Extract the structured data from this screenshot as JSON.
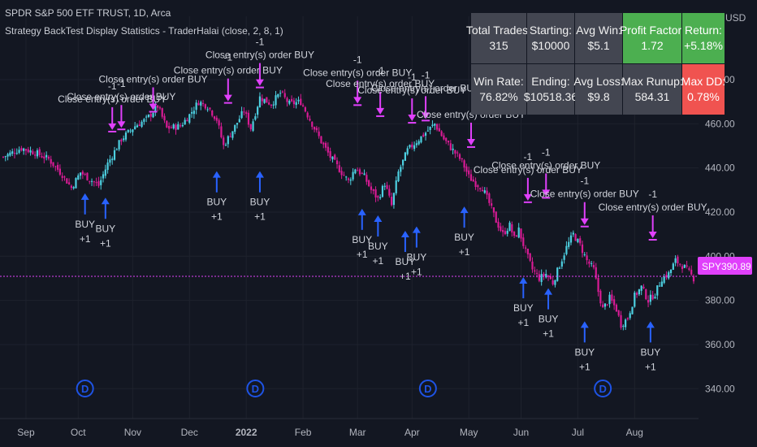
{
  "header": {
    "symbol_line": "SPDR S&P 500 ETF TRUST, 1D, Arca",
    "strategy_line": "Strategy BackTest Display Statistics - TraderHalai (close, 2, 8, 1)"
  },
  "stats_table": [
    {
      "label": "Total Trades:",
      "value": "315",
      "tone": "neutral"
    },
    {
      "label": "Starting:",
      "value": "$10000",
      "tone": "neutral"
    },
    {
      "label": "Avg Win:",
      "value": "$5.1",
      "tone": "neutral"
    },
    {
      "label": "Profit Factor:",
      "value": "1.72",
      "tone": "positive"
    },
    {
      "label": "Return:",
      "value": "+5.18%",
      "tone": "positive"
    },
    {
      "label": "Win Rate:",
      "value": "76.82%",
      "tone": "neutral"
    },
    {
      "label": "Ending:",
      "value": "$10518.36",
      "tone": "neutral"
    },
    {
      "label": "Avg Loss:",
      "value": "$9.8",
      "tone": "neutral"
    },
    {
      "label": "Max Runup:",
      "value": "584.31",
      "tone": "neutral"
    },
    {
      "label": "Max DD:",
      "value": "0.78%",
      "tone": "negative"
    }
  ],
  "colors": {
    "background": "#131722",
    "candle_up": "#4dd0e1",
    "candle_down": "#d81b95",
    "buy_arrow": "#2962ff",
    "exit_arrow": "#e040fb",
    "positive": "#4caf50",
    "negative": "#f05350",
    "price_tag": "#e040fb",
    "dividend_marker": "#1e53e5"
  },
  "chart_data": {
    "type": "candlestick",
    "symbol": "SPY",
    "currency": "USD",
    "last_price": 390.89,
    "last_price_label": "390.89",
    "x_ticks": [
      "Sep",
      "Oct",
      "Nov",
      "Dec",
      "2022",
      "Feb",
      "Mar",
      "Apr",
      "May",
      "Jun",
      "Jul",
      "Aug"
    ],
    "y_ticks": [
      "480.00",
      "460.00",
      "440.00",
      "420.00",
      "400.00",
      "380.00",
      "360.00",
      "340.00"
    ],
    "ylim": [
      332,
      494
    ],
    "y_axis_unit": "USD",
    "close_path": [
      [
        0,
        445
      ],
      [
        8,
        449
      ],
      [
        14,
        447
      ],
      [
        20,
        444
      ],
      [
        26,
        437
      ],
      [
        30,
        431
      ],
      [
        34,
        438
      ],
      [
        38,
        435
      ],
      [
        42,
        432
      ],
      [
        46,
        442
      ],
      [
        52,
        453
      ],
      [
        58,
        459
      ],
      [
        63,
        462
      ],
      [
        68,
        468
      ],
      [
        72,
        458
      ],
      [
        78,
        459
      ],
      [
        82,
        464
      ],
      [
        86,
        470
      ],
      [
        90,
        468
      ],
      [
        94,
        462
      ],
      [
        97,
        450
      ],
      [
        101,
        457
      ],
      [
        106,
        466
      ],
      [
        109,
        458
      ],
      [
        113,
        472
      ],
      [
        118,
        469
      ],
      [
        122,
        474
      ],
      [
        126,
        469
      ],
      [
        131,
        470
      ],
      [
        136,
        460
      ],
      [
        140,
        452
      ],
      [
        144,
        445
      ],
      [
        149,
        438
      ],
      [
        152,
        434
      ],
      [
        155,
        440
      ],
      [
        159,
        436
      ],
      [
        162,
        430
      ],
      [
        165,
        426
      ],
      [
        168,
        433
      ],
      [
        171,
        423
      ],
      [
        174,
        438
      ],
      [
        178,
        448
      ],
      [
        182,
        452
      ],
      [
        186,
        456
      ],
      [
        190,
        460
      ],
      [
        194,
        453
      ],
      [
        198,
        448
      ],
      [
        202,
        443
      ],
      [
        205,
        436
      ],
      [
        208,
        433
      ],
      [
        211,
        431
      ],
      [
        214,
        424
      ],
      [
        217,
        416
      ],
      [
        220,
        410
      ],
      [
        223,
        414
      ],
      [
        225,
        408
      ],
      [
        227,
        412
      ],
      [
        230,
        402
      ],
      [
        233,
        394
      ],
      [
        236,
        390
      ],
      [
        239,
        392
      ],
      [
        242,
        388
      ],
      [
        245,
        396
      ],
      [
        248,
        404
      ],
      [
        251,
        410
      ],
      [
        254,
        405
      ],
      [
        257,
        398
      ],
      [
        260,
        394
      ],
      [
        262,
        384
      ],
      [
        264,
        376
      ],
      [
        267,
        381
      ],
      [
        270,
        376
      ],
      [
        272,
        369
      ],
      [
        275,
        372
      ],
      [
        278,
        382
      ],
      [
        281,
        386
      ],
      [
        284,
        380
      ],
      [
        287,
        383
      ],
      [
        290,
        390
      ],
      [
        293,
        392
      ],
      [
        296,
        398
      ],
      [
        300,
        395
      ],
      [
        304,
        390
      ]
    ],
    "series": [
      {
        "name": "SPY",
        "values": [
          445,
          390.89
        ]
      }
    ],
    "exit_signals": [
      {
        "label_top": "-1",
        "label": "Close entry(s) order BUY",
        "x": 48,
        "y": 455
      },
      {
        "label_top": "-1",
        "label": "Close entry(s) order BUY",
        "x": 52,
        "y": 456
      },
      {
        "label_top": "",
        "label": "Close entry(s) order BUY",
        "x": 66,
        "y": 464
      },
      {
        "label_top": "-1",
        "label": "Close entry(s) order BUY",
        "x": 99,
        "y": 468
      },
      {
        "label_top": "-1",
        "label": "Close entry(s) order BUY",
        "x": 113,
        "y": 475
      },
      {
        "label_top": "-1",
        "label": "Close entry(s) order BUY",
        "x": 156,
        "y": 467
      },
      {
        "label_top": "-1",
        "label": "Close entry(s) order BUY",
        "x": 166,
        "y": 462
      },
      {
        "label_top": "-1",
        "label": "Close entry(s) order BUY",
        "x": 180,
        "y": 459
      },
      {
        "label_top": "-1",
        "label": "Close entry(s) order BUY",
        "x": 186,
        "y": 460
      },
      {
        "label_top": "",
        "label": "Close entry(s) order BUY",
        "x": 206,
        "y": 448
      },
      {
        "label_top": "-1",
        "label": "Close entry(s) order BUY",
        "x": 231,
        "y": 423
      },
      {
        "label_top": "-1",
        "label": "Close entry(s) order BUY",
        "x": 239,
        "y": 425
      },
      {
        "label_top": "-1",
        "label": "Close entry(s) order BUY",
        "x": 256,
        "y": 412
      },
      {
        "label_top": "-1",
        "label": "Close entry(s) order BUY",
        "x": 286,
        "y": 406
      }
    ],
    "entry_signals": [
      {
        "label": "BUY",
        "label_bottom": "+1",
        "x": 36,
        "y": 430
      },
      {
        "label": "BUY",
        "label_bottom": "+1",
        "x": 45,
        "y": 428
      },
      {
        "label": "BUY",
        "label_bottom": "+1",
        "x": 94,
        "y": 440
      },
      {
        "label": "BUY",
        "label_bottom": "+1",
        "x": 113,
        "y": 440
      },
      {
        "label": "BUY",
        "label_bottom": "+1",
        "x": 158,
        "y": 423
      },
      {
        "label": "BUY",
        "label_bottom": "+1",
        "x": 165,
        "y": 420
      },
      {
        "label": "BUY",
        "label_bottom": "+1",
        "x": 177,
        "y": 413
      },
      {
        "label": "BUY",
        "label_bottom": "+1",
        "x": 182,
        "y": 415
      },
      {
        "label": "BUY",
        "label_bottom": "+1",
        "x": 203,
        "y": 424
      },
      {
        "label": "BUY",
        "label_bottom": "+1",
        "x": 229,
        "y": 392
      },
      {
        "label": "BUY",
        "label_bottom": "+1",
        "x": 240,
        "y": 387
      },
      {
        "label": "BUY",
        "label_bottom": "+1",
        "x": 256,
        "y": 372
      },
      {
        "label": "BUY",
        "label_bottom": "+1",
        "x": 285,
        "y": 372
      }
    ],
    "dividend_markers": [
      {
        "label": "D",
        "x": 36
      },
      {
        "label": "D",
        "x": 111
      },
      {
        "label": "D",
        "x": 187
      },
      {
        "label": "D",
        "x": 264
      }
    ],
    "grid": true
  }
}
